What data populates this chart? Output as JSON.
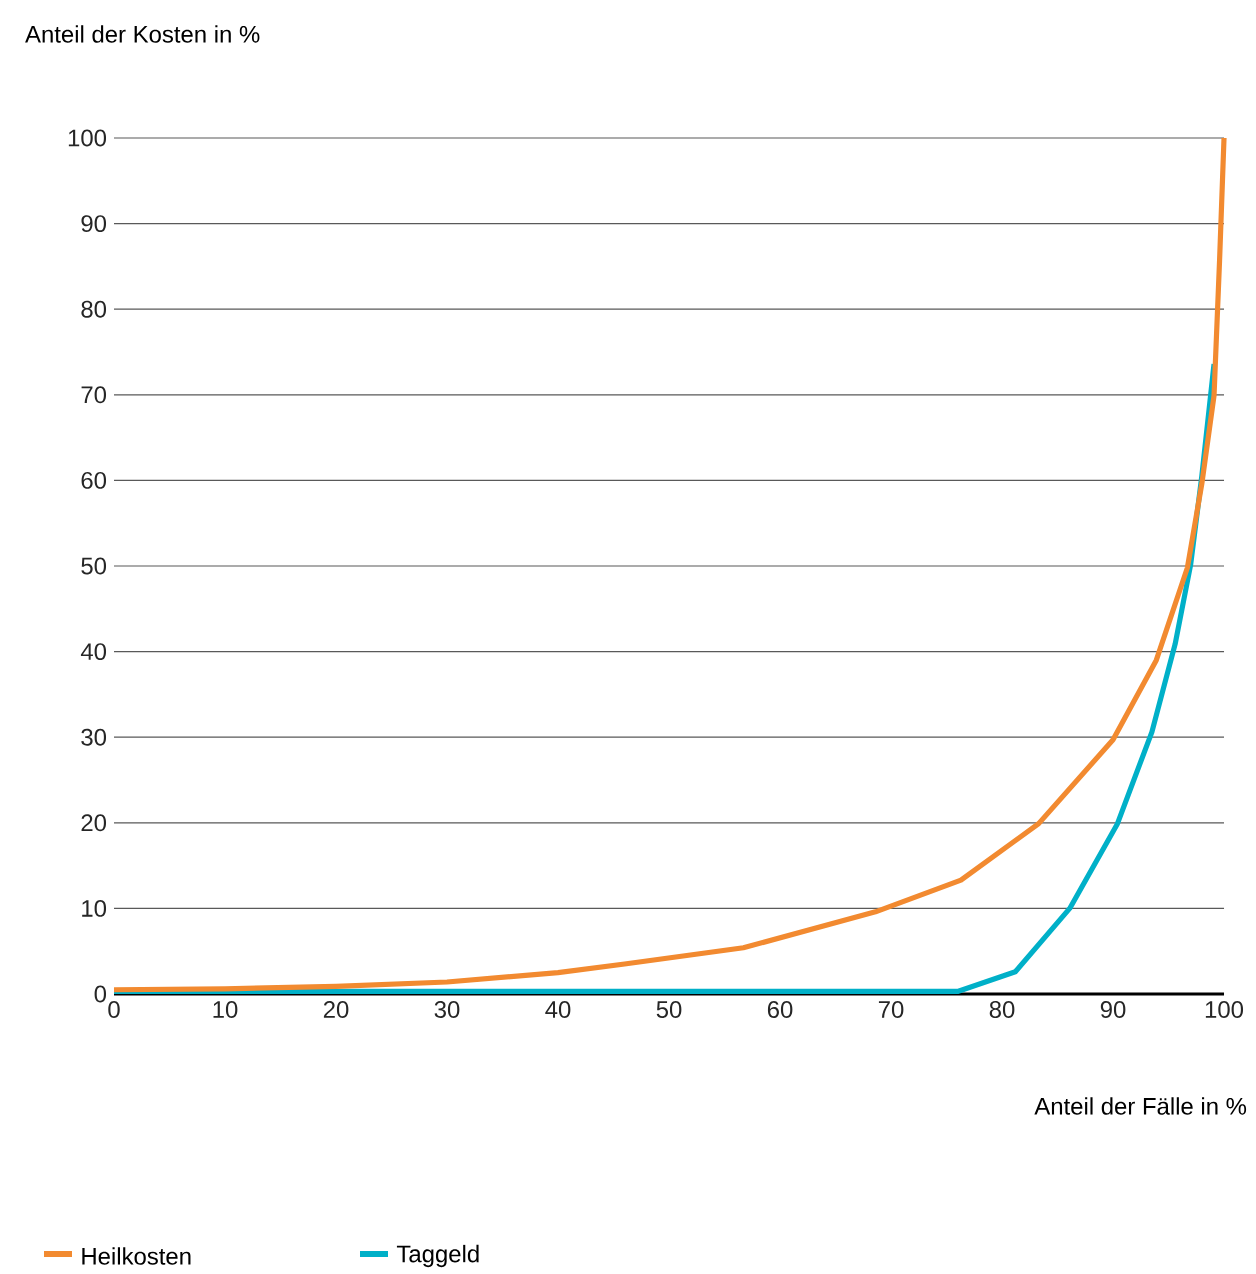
{
  "chart_data": {
    "type": "line",
    "xlabel": "Anteil der Fälle in %",
    "ylabel": "Anteil der Kosten in %",
    "xlim": [
      0,
      100
    ],
    "ylim": [
      0,
      100
    ],
    "xticks": [
      0,
      10,
      20,
      30,
      40,
      50,
      60,
      70,
      80,
      90,
      100
    ],
    "yticks": [
      0,
      10,
      20,
      30,
      40,
      50,
      60,
      70,
      80,
      90,
      100
    ],
    "grid": "y",
    "legend": "bottom",
    "marker": "none",
    "line_style": "solid",
    "series": [
      {
        "name": "Heilkosten",
        "color": "#f28a30",
        "x": [
          0,
          10,
          20,
          30,
          40,
          46,
          56.7,
          68.6,
          76.3,
          83.3,
          90,
          93.9,
          96.7,
          98,
          99.1,
          99.6,
          100
        ],
        "values": [
          0.5,
          0.6,
          0.9,
          1.4,
          2.5,
          3.5,
          5.4,
          9.6,
          13.3,
          19.9,
          29.7,
          39,
          49.8,
          59.6,
          69.9,
          85.7,
          100
        ]
      },
      {
        "name": "Taggeld",
        "color": "#00b0c8",
        "x": [
          0,
          76,
          81.2,
          86.1,
          90.4,
          93.5,
          95.6,
          97,
          98,
          99.1
        ],
        "values": [
          0.3,
          0.3,
          2.6,
          10,
          19.9,
          30.6,
          40.9,
          50.2,
          60.5,
          73.6
        ]
      }
    ]
  }
}
